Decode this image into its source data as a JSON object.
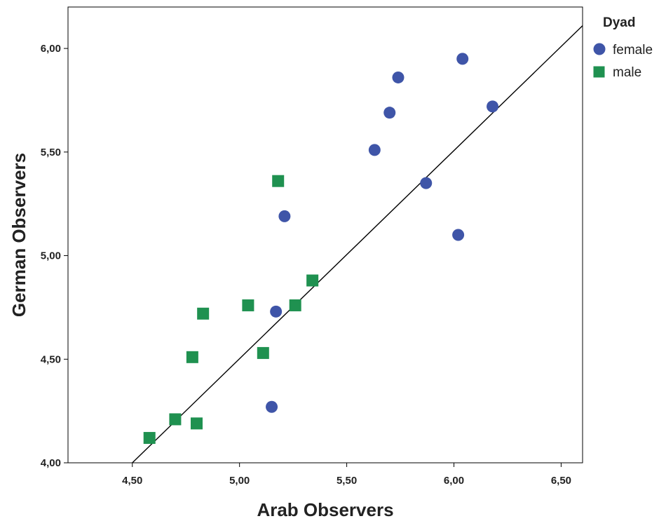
{
  "chart_data": {
    "type": "scatter",
    "title": "",
    "xlabel": "Arab Observers",
    "ylabel": "German Observers",
    "xlim": [
      4.2,
      6.6
    ],
    "ylim": [
      4.0,
      6.2
    ],
    "xticks": [
      4.5,
      5.0,
      5.5,
      6.0,
      6.5
    ],
    "yticks": [
      4.0,
      4.5,
      5.0,
      5.5,
      6.0
    ],
    "xtick_labels": [
      "4,50",
      "5,00",
      "5,50",
      "6,00",
      "6,50"
    ],
    "ytick_labels": [
      "4,00",
      "4,50",
      "5,00",
      "5,50",
      "6,00"
    ],
    "grid": false,
    "legend": {
      "title": "Dyad",
      "position": "top-right",
      "entries": [
        {
          "label": "female",
          "marker": "circle",
          "color": "#3f55a8"
        },
        {
          "label": "male",
          "marker": "square",
          "color": "#1f9150"
        }
      ]
    },
    "series": [
      {
        "name": "female",
        "marker": "circle",
        "color": "#3f55a8",
        "points": [
          [
            6.04,
            5.95
          ],
          [
            5.74,
            5.86
          ],
          [
            5.7,
            5.69
          ],
          [
            6.18,
            5.72
          ],
          [
            5.63,
            5.51
          ],
          [
            5.87,
            5.35
          ],
          [
            5.21,
            5.19
          ],
          [
            6.02,
            5.1
          ],
          [
            5.17,
            4.73
          ],
          [
            5.15,
            4.27
          ]
        ]
      },
      {
        "name": "male",
        "marker": "square",
        "color": "#1f9150",
        "points": [
          [
            5.18,
            5.36
          ],
          [
            5.34,
            4.88
          ],
          [
            5.04,
            4.76
          ],
          [
            5.26,
            4.76
          ],
          [
            4.83,
            4.72
          ],
          [
            4.78,
            4.51
          ],
          [
            5.11,
            4.53
          ],
          [
            4.7,
            4.21
          ],
          [
            4.8,
            4.19
          ],
          [
            4.58,
            4.12
          ]
        ]
      }
    ],
    "fit_line": {
      "x1": 4.5,
      "y1": 4.0,
      "x2": 6.6,
      "y2": 6.11,
      "color": "#000000"
    }
  }
}
